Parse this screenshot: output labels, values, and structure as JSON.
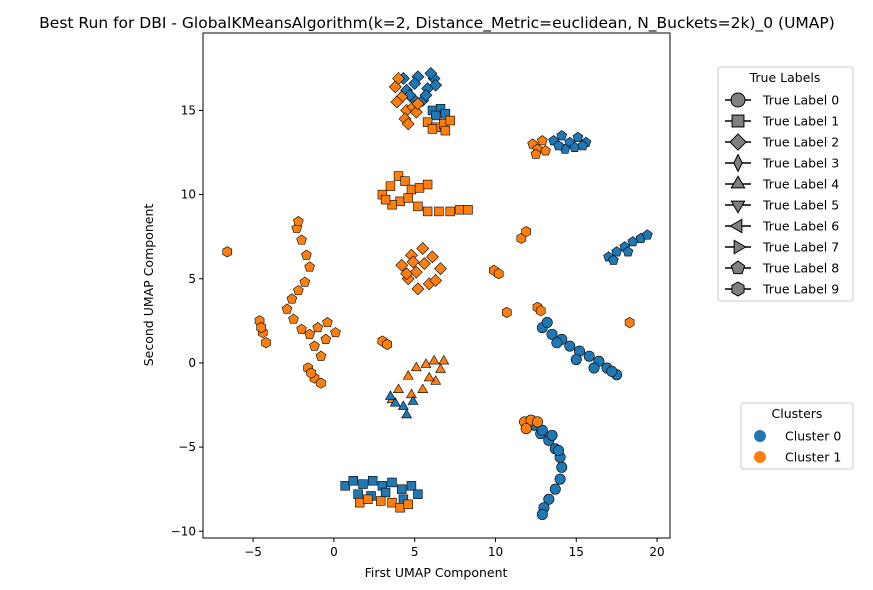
{
  "chart_data": {
    "type": "scatter",
    "title": "Best Run for DBI - GlobalKMeansAlgorithm(k=2, Distance_Metric=euclidean, N_Buckets=2k)_0 (UMAP)",
    "xlabel": "First UMAP Component",
    "ylabel": "Second UMAP Component",
    "xlim": [
      -8.1,
      20.8
    ],
    "ylim": [
      -10.4,
      19.6
    ],
    "x_ticks": [
      -5,
      0,
      5,
      10,
      15,
      20
    ],
    "y_ticks": [
      -10,
      -5,
      0,
      5,
      10,
      15
    ],
    "x_tick_labels": [
      "−5",
      "0",
      "5",
      "10",
      "15",
      "20"
    ],
    "y_tick_labels": [
      "−10",
      "−5",
      "0",
      "5",
      "10",
      "15"
    ],
    "grid": false,
    "colors": {
      "Cluster 0": "#1f77b4",
      "Cluster 1": "#ff7f0e"
    },
    "clusters_legend": {
      "title": "Clusters",
      "placement": "right",
      "entries": [
        {
          "label": "Cluster 0",
          "color": "#1f77b4"
        },
        {
          "label": "Cluster 1",
          "color": "#ff7f0e"
        }
      ]
    },
    "true_labels_legend": {
      "title": "True Labels",
      "placement": "top-right",
      "entries": [
        {
          "label": "True Label 0",
          "marker": "circle"
        },
        {
          "label": "True Label 1",
          "marker": "square"
        },
        {
          "label": "True Label 2",
          "marker": "diamond"
        },
        {
          "label": "True Label 3",
          "marker": "thin-diamond"
        },
        {
          "label": "True Label 4",
          "marker": "triangle-up"
        },
        {
          "label": "True Label 5",
          "marker": "triangle-down"
        },
        {
          "label": "True Label 6",
          "marker": "triangle-left"
        },
        {
          "label": "True Label 7",
          "marker": "triangle-right"
        },
        {
          "label": "True Label 8",
          "marker": "pentagon"
        },
        {
          "label": "True Label 9",
          "marker": "hexagon"
        }
      ]
    },
    "groups": [
      {
        "cluster": 0,
        "marker": "diamond",
        "points": [
          [
            4.5,
            16.2
          ],
          [
            5.2,
            17.0
          ],
          [
            5.8,
            16.3
          ],
          [
            4.9,
            15.7
          ],
          [
            6.2,
            16.9
          ],
          [
            5.5,
            15.6
          ],
          [
            4.3,
            16.9
          ],
          [
            6.0,
            17.2
          ],
          [
            5.0,
            16.6
          ],
          [
            4.7,
            15.9
          ],
          [
            5.7,
            15.9
          ],
          [
            6.3,
            16.5
          ]
        ]
      },
      {
        "cluster": 1,
        "marker": "diamond",
        "points": [
          [
            3.8,
            16.4
          ],
          [
            4.2,
            15.8
          ],
          [
            4.5,
            15.0
          ],
          [
            4.9,
            15.2
          ],
          [
            4.4,
            14.5
          ],
          [
            5.1,
            14.9
          ],
          [
            4.0,
            16.9
          ],
          [
            3.9,
            15.5
          ],
          [
            4.6,
            14.2
          ],
          [
            5.2,
            15.4
          ]
        ]
      },
      {
        "cluster": 0,
        "marker": "square",
        "points": [
          [
            6.1,
            15.0
          ],
          [
            6.6,
            15.1
          ],
          [
            6.9,
            14.8
          ],
          [
            6.3,
            14.7
          ]
        ]
      },
      {
        "cluster": 1,
        "marker": "square",
        "points": [
          [
            5.8,
            14.3
          ],
          [
            6.3,
            14.0
          ],
          [
            6.8,
            14.2
          ],
          [
            7.2,
            14.4
          ],
          [
            6.1,
            13.9
          ],
          [
            6.9,
            13.8
          ]
        ]
      },
      {
        "cluster": 0,
        "marker": "pentagon",
        "points": [
          [
            13.6,
            13.2
          ],
          [
            14.1,
            13.5
          ],
          [
            14.6,
            13.1
          ],
          [
            15.1,
            13.4
          ],
          [
            15.6,
            13.1
          ],
          [
            14.3,
            12.7
          ],
          [
            14.9,
            12.8
          ],
          [
            15.4,
            12.9
          ],
          [
            13.9,
            12.9
          ]
        ]
      },
      {
        "cluster": 1,
        "marker": "pentagon",
        "points": [
          [
            12.3,
            13.0
          ],
          [
            12.6,
            12.7
          ],
          [
            12.9,
            13.2
          ],
          [
            13.1,
            12.6
          ],
          [
            12.5,
            12.4
          ]
        ]
      },
      {
        "cluster": 1,
        "marker": "square",
        "points": [
          [
            3.0,
            10.0
          ],
          [
            3.5,
            10.5
          ],
          [
            4.0,
            11.1
          ],
          [
            4.4,
            10.8
          ],
          [
            4.8,
            10.3
          ],
          [
            4.1,
            9.6
          ],
          [
            3.6,
            9.4
          ],
          [
            4.6,
            9.8
          ],
          [
            5.2,
            9.3
          ],
          [
            5.8,
            9.0
          ],
          [
            6.5,
            9.0
          ],
          [
            7.2,
            9.0
          ],
          [
            7.8,
            9.1
          ],
          [
            8.3,
            9.1
          ],
          [
            5.3,
            10.4
          ],
          [
            5.8,
            10.6
          ],
          [
            3.2,
            9.7
          ]
        ]
      },
      {
        "cluster": 1,
        "marker": "diamond",
        "points": [
          [
            4.2,
            5.8
          ],
          [
            4.8,
            6.4
          ],
          [
            5.5,
            6.8
          ],
          [
            6.1,
            6.3
          ],
          [
            6.6,
            5.6
          ],
          [
            5.9,
            4.7
          ],
          [
            5.2,
            4.4
          ],
          [
            4.6,
            5.0
          ],
          [
            5.1,
            5.4
          ],
          [
            5.6,
            5.9
          ],
          [
            4.9,
            6.0
          ],
          [
            6.3,
            4.9
          ],
          [
            4.5,
            5.3
          ]
        ]
      },
      {
        "cluster": 1,
        "marker": "pentagon",
        "points": [
          [
            -2.3,
            8.0
          ],
          [
            -2.0,
            7.3
          ],
          [
            -1.7,
            6.4
          ],
          [
            -1.5,
            5.7
          ],
          [
            -1.8,
            4.8
          ],
          [
            -2.2,
            4.3
          ],
          [
            -2.6,
            3.8
          ],
          [
            -2.9,
            3.2
          ],
          [
            -2.5,
            2.6
          ],
          [
            -2.0,
            2.0
          ],
          [
            -1.0,
            2.1
          ],
          [
            -0.4,
            2.4
          ],
          [
            0.1,
            1.8
          ],
          [
            -0.5,
            1.4
          ],
          [
            -1.2,
            1.0
          ],
          [
            -0.8,
            0.4
          ],
          [
            -2.2,
            8.4
          ],
          [
            -1.5,
            1.7
          ]
        ]
      },
      {
        "cluster": 1,
        "marker": "hexagon",
        "points": [
          [
            -6.6,
            6.6
          ],
          [
            -4.6,
            2.5
          ],
          [
            -4.4,
            1.8
          ],
          [
            -4.2,
            1.2
          ],
          [
            -4.5,
            2.1
          ],
          [
            3.0,
            1.3
          ],
          [
            3.3,
            1.1
          ],
          [
            -1.6,
            -0.3
          ],
          [
            -1.2,
            -0.9
          ],
          [
            -0.8,
            -1.2
          ],
          [
            -1.4,
            -0.6
          ],
          [
            9.9,
            5.5
          ],
          [
            10.2,
            5.3
          ],
          [
            10.7,
            3.0
          ],
          [
            12.6,
            3.3
          ],
          [
            12.8,
            3.1
          ],
          [
            11.6,
            7.4
          ],
          [
            11.9,
            7.8
          ],
          [
            18.3,
            2.4
          ]
        ]
      },
      {
        "cluster": 1,
        "marker": "triangle-up",
        "points": [
          [
            4.0,
            -1.6
          ],
          [
            4.6,
            -0.8
          ],
          [
            5.1,
            -0.3
          ],
          [
            5.7,
            -0.1
          ],
          [
            6.2,
            0.1
          ],
          [
            6.6,
            -0.4
          ],
          [
            6.3,
            -1.1
          ],
          [
            5.5,
            -1.6
          ],
          [
            4.8,
            -1.9
          ],
          [
            5.9,
            -0.9
          ],
          [
            3.6,
            -2.2
          ],
          [
            6.8,
            0.1
          ]
        ]
      },
      {
        "cluster": 0,
        "marker": "triangle-up",
        "points": [
          [
            3.8,
            -2.4
          ],
          [
            4.3,
            -2.6
          ],
          [
            4.5,
            -3.1
          ],
          [
            4.9,
            -2.3
          ],
          [
            3.5,
            -2.0
          ]
        ]
      },
      {
        "cluster": 0,
        "marker": "pentagon",
        "points": [
          [
            17.0,
            6.3
          ],
          [
            17.5,
            6.6
          ],
          [
            18.0,
            6.9
          ],
          [
            18.5,
            7.2
          ],
          [
            19.0,
            7.4
          ],
          [
            19.4,
            7.6
          ],
          [
            17.3,
            6.1
          ],
          [
            18.2,
            6.6
          ]
        ]
      },
      {
        "cluster": 0,
        "marker": "circle",
        "points": [
          [
            12.9,
            2.1
          ],
          [
            13.5,
            1.7
          ],
          [
            14.1,
            1.4
          ],
          [
            14.6,
            1.0
          ],
          [
            15.2,
            0.7
          ],
          [
            15.8,
            0.4
          ],
          [
            16.4,
            0.1
          ],
          [
            16.9,
            -0.3
          ],
          [
            17.5,
            -0.7
          ],
          [
            13.2,
            2.4
          ],
          [
            13.8,
            1.2
          ],
          [
            15.0,
            0.2
          ],
          [
            16.1,
            -0.3
          ],
          [
            17.2,
            -0.5
          ]
        ]
      },
      {
        "cluster": 0,
        "marker": "circle",
        "points": [
          [
            12.4,
            -3.7
          ],
          [
            12.8,
            -4.2
          ],
          [
            13.3,
            -4.6
          ],
          [
            13.7,
            -5.1
          ],
          [
            14.0,
            -5.6
          ],
          [
            14.1,
            -6.2
          ],
          [
            14.0,
            -6.9
          ],
          [
            13.7,
            -7.5
          ],
          [
            13.3,
            -8.1
          ],
          [
            13.0,
            -8.6
          ],
          [
            12.9,
            -9.0
          ],
          [
            12.9,
            -4.0
          ],
          [
            13.5,
            -4.3
          ],
          [
            13.9,
            -5.2
          ]
        ]
      },
      {
        "cluster": 1,
        "marker": "circle",
        "points": [
          [
            11.8,
            -3.5
          ],
          [
            12.2,
            -3.4
          ],
          [
            12.6,
            -3.5
          ],
          [
            11.9,
            -3.9
          ]
        ]
      },
      {
        "cluster": 0,
        "marker": "square",
        "points": [
          [
            0.7,
            -7.3
          ],
          [
            1.2,
            -7.0
          ],
          [
            1.8,
            -7.2
          ],
          [
            2.4,
            -7.0
          ],
          [
            3.0,
            -7.3
          ],
          [
            3.6,
            -7.1
          ],
          [
            4.2,
            -7.5
          ],
          [
            4.8,
            -7.3
          ],
          [
            5.2,
            -7.8
          ],
          [
            1.5,
            -7.8
          ],
          [
            2.3,
            -7.9
          ],
          [
            3.2,
            -7.7
          ],
          [
            4.3,
            -8.1
          ]
        ]
      },
      {
        "cluster": 1,
        "marker": "square",
        "points": [
          [
            1.6,
            -8.3
          ],
          [
            2.1,
            -8.1
          ],
          [
            3.6,
            -8.3
          ],
          [
            4.1,
            -8.6
          ],
          [
            4.6,
            -8.4
          ],
          [
            2.9,
            -8.2
          ]
        ]
      }
    ]
  }
}
